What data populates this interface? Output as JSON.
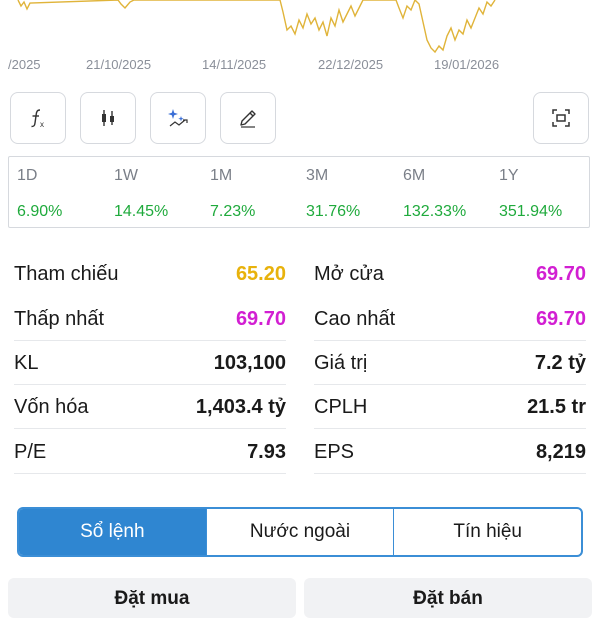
{
  "chart": {
    "line_color": "#e0b43a",
    "date_labels": [
      "/2025",
      "21/10/2025",
      "14/11/2025",
      "22/12/2025",
      "19/01/2026"
    ]
  },
  "toolbar": {
    "items": [
      {
        "name": "function-icon",
        "label": "fx"
      },
      {
        "name": "candlestick-icon",
        "label": ""
      },
      {
        "name": "magic-indicator-icon",
        "label": ""
      },
      {
        "name": "draw-pencil-icon",
        "label": ""
      },
      {
        "name": "screenshot-icon",
        "label": ""
      }
    ]
  },
  "performance": [
    {
      "period": "1D",
      "change": "6.90%"
    },
    {
      "period": "1W",
      "change": "14.45%"
    },
    {
      "period": "1M",
      "change": "7.23%"
    },
    {
      "period": "3M",
      "change": "31.76%"
    },
    {
      "period": "6M",
      "change": "132.33%"
    },
    {
      "period": "1Y",
      "change": "351.94%"
    }
  ],
  "stats": {
    "left": [
      {
        "label": "Tham chiếu",
        "value": "65.20",
        "color": "#e8b20c"
      },
      {
        "label": "Thấp nhất",
        "value": "69.70",
        "color": "#d21fd2"
      },
      {
        "label": "KL",
        "value": "103,100",
        "color": "#1a1a1a"
      },
      {
        "label": "Vốn hóa",
        "value": "1,403.4 tỷ",
        "color": "#1a1a1a"
      },
      {
        "label": "P/E",
        "value": "7.93",
        "color": "#1a1a1a"
      }
    ],
    "right": [
      {
        "label": "Mở cửa",
        "value": "69.70",
        "color": "#d21fd2"
      },
      {
        "label": "Cao nhất",
        "value": "69.70",
        "color": "#d21fd2"
      },
      {
        "label": "Giá trị",
        "value": "7.2 tỷ",
        "color": "#1a1a1a"
      },
      {
        "label": "CPLH",
        "value": "21.5 tr",
        "color": "#1a1a1a"
      },
      {
        "label": "EPS",
        "value": "8,219",
        "color": "#1a1a1a"
      }
    ]
  },
  "tabs": {
    "items": [
      "Sổ lệnh",
      "Nước ngoài",
      "Tín hiệu"
    ],
    "active_index": 0
  },
  "orders": {
    "buy_label": "Đặt mua",
    "sell_label": "Đặt bán"
  }
}
